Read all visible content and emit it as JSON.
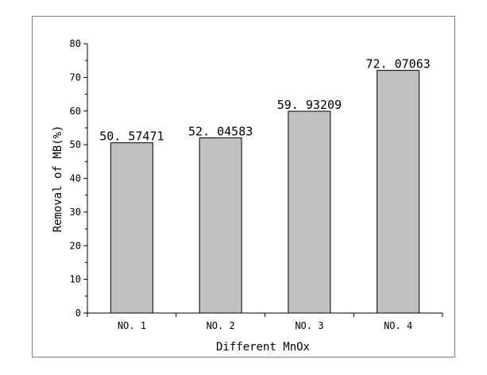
{
  "chart_data": {
    "type": "bar",
    "categories": [
      "NO. 1",
      "NO. 2",
      "NO. 3",
      "NO. 4"
    ],
    "values": [
      50.57471,
      52.04583,
      59.93209,
      72.07063
    ],
    "data_labels": [
      "50. 57471",
      "52. 04583",
      "59. 93209",
      "72. 07063"
    ],
    "title": "",
    "xlabel": "Different MnOx",
    "ylabel": "Removal of MB(%)",
    "ylim": [
      0,
      80
    ],
    "yticks": [
      0,
      10,
      20,
      30,
      40,
      50,
      60,
      70,
      80
    ],
    "grid": false,
    "bar_color": "#c0c0c0",
    "bar_edge_color": "#000000"
  }
}
